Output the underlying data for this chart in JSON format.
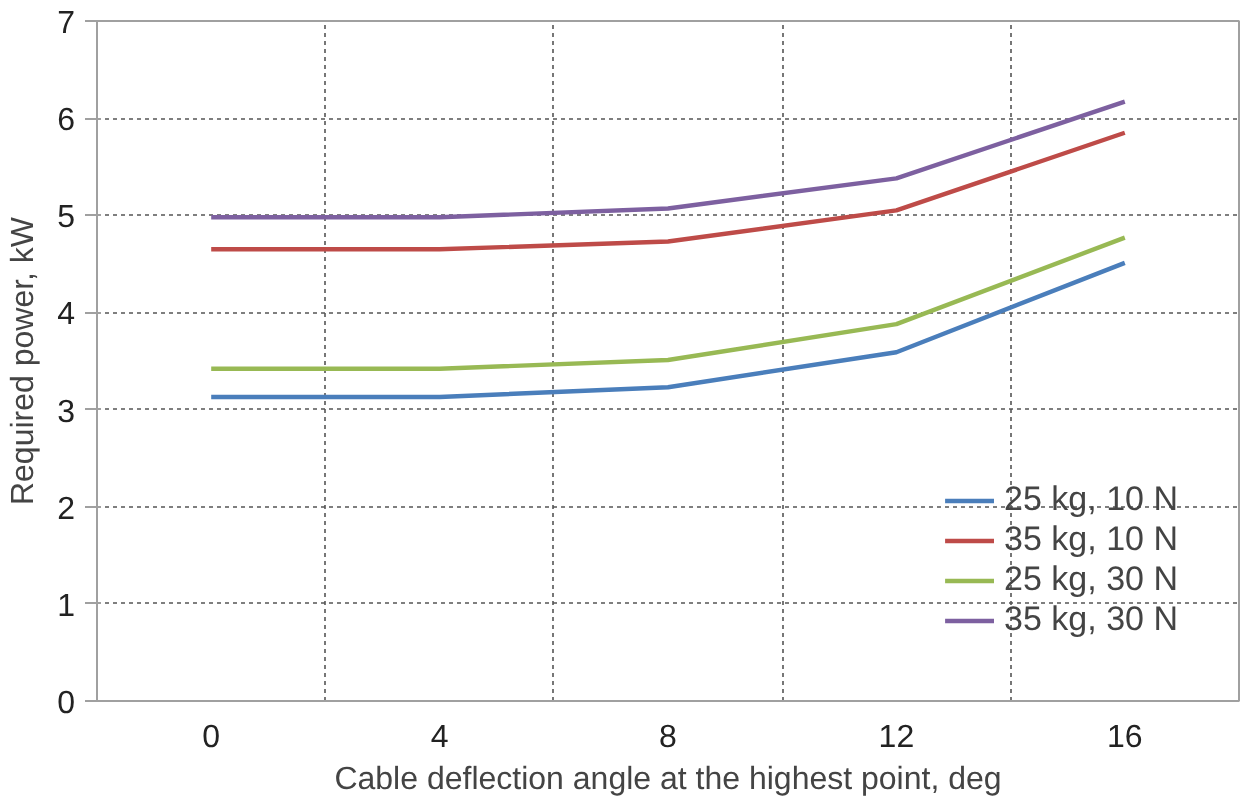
{
  "chart_data": {
    "type": "line",
    "xlabel": "Cable deflection angle at the highest point, deg",
    "ylabel": "Required power, kW",
    "categories": [
      "0",
      "4",
      "8",
      "12",
      "16"
    ],
    "series": [
      {
        "name": "25 kg, 10 N",
        "color": "#4a7ebb",
        "values": [
          3.13,
          3.13,
          3.23,
          3.59,
          4.51
        ]
      },
      {
        "name": "35 kg, 10 N",
        "color": "#be4b48",
        "values": [
          4.65,
          4.65,
          4.73,
          5.05,
          5.85
        ]
      },
      {
        "name": "25 kg, 30 N",
        "color": "#98b954",
        "values": [
          3.42,
          3.42,
          3.51,
          3.88,
          4.77
        ]
      },
      {
        "name": "35 kg, 30 N",
        "color": "#7d60a0",
        "values": [
          4.98,
          4.98,
          5.07,
          5.38,
          6.17
        ]
      }
    ],
    "ylim": [
      0,
      7
    ],
    "yticks": [
      0,
      1,
      2,
      3,
      4,
      5,
      6,
      7
    ],
    "grid": true,
    "legend": "bottom right",
    "marker": "none",
    "line_style": "solid"
  }
}
